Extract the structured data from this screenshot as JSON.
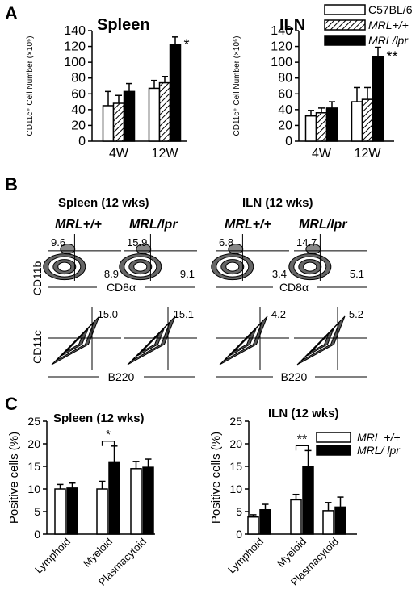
{
  "colors": {
    "white": "#ffffff",
    "black": "#000000"
  },
  "panel_labels": {
    "a": "A",
    "b": "B",
    "c": "C"
  },
  "legend_A": [
    {
      "label": "C57BL/6",
      "pattern": "white"
    },
    {
      "label": "MRL+/+",
      "pattern": "hatch"
    },
    {
      "label": "MRL/lpr",
      "pattern": "black"
    }
  ],
  "legend_C": [
    {
      "label": "MRL +/+",
      "pattern": "white"
    },
    {
      "label": "MRL/ lpr",
      "pattern": "black"
    }
  ],
  "panel_B": {
    "groups": [
      {
        "title": "Spleen (12 wks)",
        "col1": "MRL+/+",
        "col2": "MRL/lpr"
      },
      {
        "title": "ILN  (12 wks)",
        "col1": "MRL+/+",
        "col2": "MRL/lpr"
      }
    ],
    "row_labels": {
      "top_y": "CD11b",
      "top_x": "CD8α",
      "bottom_y": "CD11c",
      "bottom_x": "B220"
    },
    "plots_top": [
      {
        "ul": "9.6",
        "lr": "8.9"
      },
      {
        "ul": "15.9",
        "lr": "9.1"
      },
      {
        "ul": "6.8",
        "lr": "3.4"
      },
      {
        "ul": "14.7",
        "lr": "5.1"
      }
    ],
    "plots_bottom": [
      {
        "ur": "15.0"
      },
      {
        "ur": "15.1"
      },
      {
        "ur": "4.2"
      },
      {
        "ur": "5.2"
      }
    ]
  },
  "chart_data": [
    {
      "type": "bar",
      "title": "Spleen",
      "ylabel": "CD11c⁺ Cell Number (×10⁶)",
      "categories": [
        "4W",
        "12W"
      ],
      "ylim": [
        0,
        140
      ],
      "yticks": [
        "0",
        "20",
        "40",
        "60",
        "80",
        "100",
        "120",
        "140"
      ],
      "series": [
        {
          "name": "C57BL/6",
          "values": [
            45,
            67
          ],
          "errors": [
            18,
            10
          ]
        },
        {
          "name": "MRL+/+",
          "values": [
            48,
            74
          ],
          "errors": [
            10,
            8
          ]
        },
        {
          "name": "MRL/lpr",
          "values": [
            63,
            122
          ],
          "errors": [
            10,
            10
          ]
        }
      ],
      "annotations": [
        {
          "text": "*",
          "category": "12W"
        }
      ]
    },
    {
      "type": "bar",
      "title": "ILN",
      "ylabel": "CD11c⁺ Cell Number (×10⁶)",
      "categories": [
        "4W",
        "12W"
      ],
      "ylim": [
        0,
        140
      ],
      "yticks": [
        "0",
        "20",
        "40",
        "60",
        "80",
        "100",
        "120",
        "140"
      ],
      "series": [
        {
          "name": "C57BL/6",
          "values": [
            32,
            50
          ],
          "errors": [
            7,
            18
          ]
        },
        {
          "name": "MRL+/+",
          "values": [
            36,
            53
          ],
          "errors": [
            6,
            15
          ]
        },
        {
          "name": "MRL/lpr",
          "values": [
            42,
            107
          ],
          "errors": [
            8,
            12
          ]
        }
      ],
      "annotations": [
        {
          "text": "**",
          "category": "12W"
        }
      ]
    },
    {
      "type": "bar",
      "title": "Spleen  (12 wks)",
      "ylabel": "Positive cells (%)",
      "categories": [
        "Lymphoid",
        "Myeloid",
        "Plasmacytoid"
      ],
      "ylim": [
        0,
        25
      ],
      "yticks": [
        "0",
        "5",
        "10",
        "15",
        "20",
        "25"
      ],
      "series": [
        {
          "name": "MRL +/+",
          "values": [
            10,
            10,
            14.5
          ],
          "errors": [
            1,
            1.7,
            1.6
          ]
        },
        {
          "name": "MRL/ lpr",
          "values": [
            10.2,
            16,
            14.8
          ],
          "errors": [
            1.1,
            3.5,
            1.8
          ]
        }
      ],
      "annotations": [
        {
          "text": "*",
          "category": "Myeloid"
        }
      ]
    },
    {
      "type": "bar",
      "title": "ILN  (12 wks)",
      "ylabel": "Positive cells (%)",
      "categories": [
        "Lymphoid",
        "Myeloid",
        "Plasmacytoid"
      ],
      "ylim": [
        0,
        25
      ],
      "yticks": [
        "0",
        "5",
        "10",
        "15",
        "20",
        "25"
      ],
      "series": [
        {
          "name": "MRL +/+",
          "values": [
            3.8,
            7.6,
            5.2
          ],
          "errors": [
            0.5,
            1.2,
            1.8
          ]
        },
        {
          "name": "MRL/ lpr",
          "values": [
            5.4,
            15,
            6
          ],
          "errors": [
            1.2,
            3.5,
            2.2
          ]
        }
      ],
      "annotations": [
        {
          "text": "**",
          "category": "Myeloid"
        }
      ]
    }
  ]
}
